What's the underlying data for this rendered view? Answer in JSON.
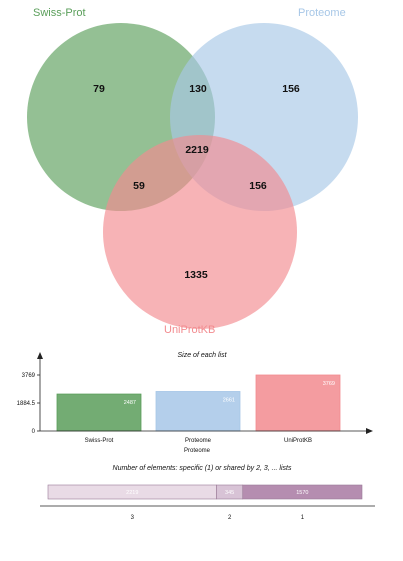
{
  "chart_data": [
    {
      "type": "venn",
      "sets": [
        {
          "name": "Swiss-Prot",
          "color": "#5a9e5a"
        },
        {
          "name": "Proteome",
          "color": "#a7c7e7"
        },
        {
          "name": "UniProtKB",
          "color": "#f28b8f"
        }
      ],
      "regions": [
        {
          "sets": [
            "Swiss-Prot"
          ],
          "value": 79
        },
        {
          "sets": [
            "Proteome"
          ],
          "value": 156
        },
        {
          "sets": [
            "UniProtKB"
          ],
          "value": 1335
        },
        {
          "sets": [
            "Swiss-Prot",
            "Proteome"
          ],
          "value": 130
        },
        {
          "sets": [
            "Swiss-Prot",
            "UniProtKB"
          ],
          "value": 59
        },
        {
          "sets": [
            "Proteome",
            "UniProtKB"
          ],
          "value": 156
        },
        {
          "sets": [
            "Swiss-Prot",
            "Proteome",
            "UniProtKB"
          ],
          "value": 2219
        }
      ]
    },
    {
      "type": "bar",
      "title": "Size of each list",
      "categories": [
        "Swiss-Prot",
        "Proteome",
        "UniProtKB"
      ],
      "values": [
        2487,
        2661,
        3769
      ],
      "colors": [
        "#5a9e5a",
        "#a7c7e7",
        "#f28b8f"
      ],
      "xlabel": "Proteome",
      "ylabel": "",
      "yticks": [
        "0",
        "1884.5",
        "3769"
      ],
      "ylim": [
        0,
        3769
      ]
    },
    {
      "type": "bar",
      "orientation": "horizontal-stacked",
      "title": "Number of elements: specific (1) or shared by 2, 3, ... lists",
      "categories": [
        "3",
        "2",
        "1"
      ],
      "values": [
        2219,
        345,
        1570
      ],
      "colors": [
        "#e9dbe6",
        "#d8c3d6",
        "#b58db0"
      ]
    }
  ]
}
